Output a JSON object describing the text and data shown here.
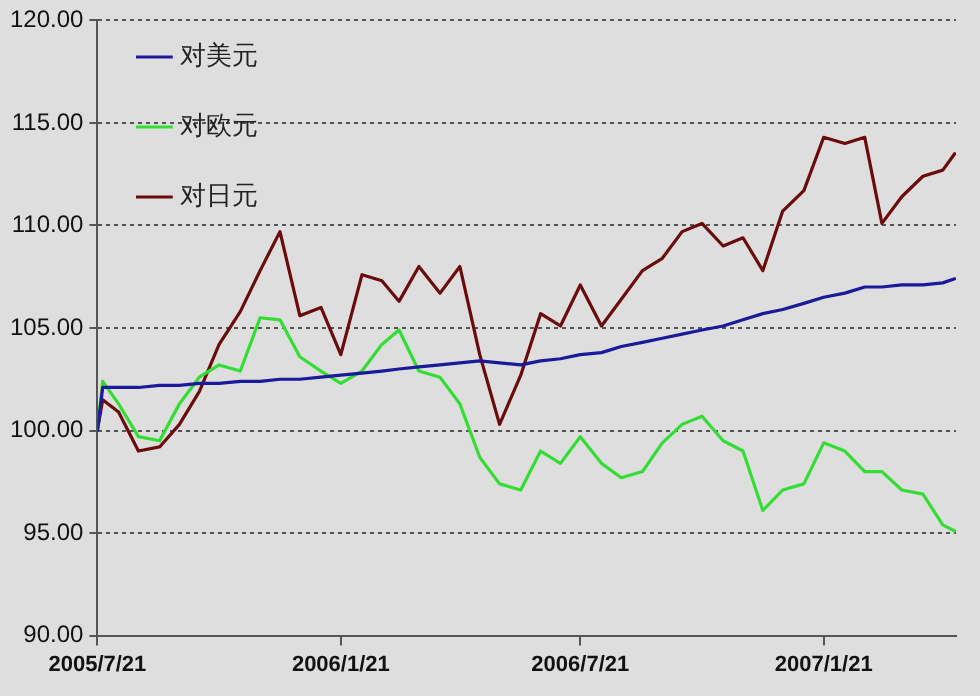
{
  "chart_data": {
    "type": "line",
    "x": [
      "2005-07-21",
      "2005-07-25",
      "2005-08-06",
      "2005-08-21",
      "2005-09-06",
      "2005-09-21",
      "2005-10-06",
      "2005-10-21",
      "2005-11-06",
      "2005-11-21",
      "2005-12-06",
      "2005-12-21",
      "2006-01-06",
      "2006-01-21",
      "2006-02-06",
      "2006-02-21",
      "2006-03-06",
      "2006-03-21",
      "2006-04-06",
      "2006-04-21",
      "2006-05-06",
      "2006-05-21",
      "2006-06-06",
      "2006-06-21",
      "2006-07-06",
      "2006-07-21",
      "2006-08-06",
      "2006-08-21",
      "2006-09-06",
      "2006-09-21",
      "2006-10-06",
      "2006-10-21",
      "2006-11-06",
      "2006-11-21",
      "2006-12-06",
      "2006-12-21",
      "2007-01-06",
      "2007-01-21",
      "2007-02-06",
      "2007-02-21",
      "2007-03-06",
      "2007-03-21",
      "2007-04-06",
      "2007-04-21",
      "2007-04-30"
    ],
    "series": [
      {
        "name": "对美元",
        "color": "#1a1a9a",
        "values": [
          100,
          102.1,
          102.1,
          102.1,
          102.2,
          102.2,
          102.3,
          102.3,
          102.4,
          102.4,
          102.5,
          102.5,
          102.6,
          102.7,
          102.8,
          102.9,
          103.0,
          103.1,
          103.2,
          103.3,
          103.4,
          103.3,
          103.2,
          103.4,
          103.5,
          103.7,
          103.8,
          104.1,
          104.3,
          104.5,
          104.7,
          104.9,
          105.1,
          105.4,
          105.7,
          105.9,
          106.2,
          106.5,
          106.7,
          107.0,
          107.0,
          107.1,
          107.1,
          107.2,
          107.4
        ]
      },
      {
        "name": "对欧元",
        "color": "#33dd33",
        "values": [
          100,
          102.4,
          101.3,
          99.7,
          99.5,
          101.3,
          102.6,
          103.2,
          102.9,
          105.5,
          105.4,
          103.6,
          102.9,
          102.3,
          102.9,
          104.2,
          104.9,
          102.9,
          102.6,
          101.3,
          98.7,
          97.4,
          97.1,
          99.0,
          98.4,
          99.7,
          98.4,
          97.7,
          98.0,
          99.4,
          100.3,
          100.7,
          99.5,
          99.0,
          96.1,
          97.1,
          97.4,
          99.4,
          99.0,
          98.0,
          98.0,
          97.1,
          96.9,
          95.4,
          95.1
        ]
      },
      {
        "name": "对日元",
        "color": "#6b0a0a",
        "values": [
          100,
          101.5,
          100.9,
          99.0,
          99.2,
          100.3,
          101.9,
          104.2,
          105.8,
          107.8,
          109.7,
          105.6,
          106.0,
          103.7,
          107.6,
          107.3,
          106.3,
          108.0,
          106.7,
          108.0,
          103.7,
          100.3,
          102.7,
          105.7,
          105.1,
          107.1,
          105.1,
          106.4,
          107.8,
          108.4,
          109.7,
          110.1,
          109.0,
          109.4,
          107.8,
          110.7,
          111.7,
          114.3,
          114.0,
          114.3,
          110.1,
          111.4,
          112.4,
          112.7,
          113.5
        ]
      }
    ],
    "xlim": [
      "2005-07-21",
      "2007-05-01"
    ],
    "xticks": [
      {
        "value": "2005-07-21",
        "label": "2005/7/21"
      },
      {
        "value": "2006-01-21",
        "label": "2006/1/21"
      },
      {
        "value": "2006-07-21",
        "label": "2006/7/21"
      },
      {
        "value": "2007-01-21",
        "label": "2007/1/21"
      }
    ],
    "ylim": [
      90,
      120
    ],
    "yticks": [
      {
        "value": 90,
        "label": "90.00"
      },
      {
        "value": 95,
        "label": "95.00"
      },
      {
        "value": 100,
        "label": "100.00"
      },
      {
        "value": 105,
        "label": "105.00"
      },
      {
        "value": 110,
        "label": "110.00"
      },
      {
        "value": 115,
        "label": "115.00"
      },
      {
        "value": 120,
        "label": "120.00"
      }
    ],
    "grid": "y",
    "legend": "top left",
    "marker": "none",
    "line_style": "solid"
  }
}
